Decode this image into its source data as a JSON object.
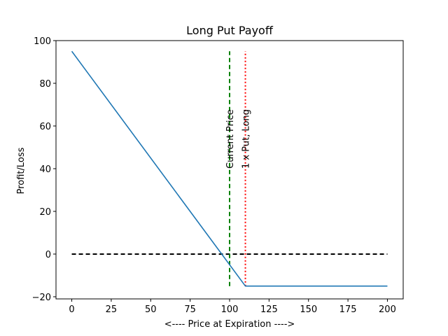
{
  "chart_data": {
    "type": "line",
    "title": "Long Put Payoff",
    "xlabel": "<---- Price at Expiration ---->",
    "ylabel": "Profit/Loss",
    "xlim": [
      -10,
      210
    ],
    "ylim": [
      -21,
      100
    ],
    "xticks": [
      0,
      25,
      50,
      75,
      100,
      125,
      150,
      175,
      200
    ],
    "yticks": [
      -20,
      0,
      20,
      40,
      60,
      80,
      100
    ],
    "grid": false,
    "legend": "none",
    "series": [
      {
        "style": "solid",
        "color": "#1f77b4",
        "x": [
          0,
          110,
          200
        ],
        "y": [
          95,
          -15,
          -15
        ]
      }
    ],
    "reference_lines": [
      {
        "orientation": "horizontal",
        "value": 0,
        "from": 0,
        "to": 200,
        "style": "dashed",
        "color": "#000000"
      },
      {
        "orientation": "vertical",
        "value": 100,
        "from": -15,
        "to": 95,
        "style": "dashed",
        "color": "#008000",
        "label": "Current Price"
      },
      {
        "orientation": "vertical",
        "value": 110,
        "from": -15,
        "to": 95,
        "style": "dotted",
        "color": "#ff0000",
        "label": "1 x Put, Long"
      }
    ],
    "annotations": [
      {
        "text": "Current Price",
        "x": 100,
        "y": 40,
        "rotation": 90
      },
      {
        "text": "1 x Put, Long",
        "x": 110,
        "y": 40,
        "rotation": 90
      }
    ]
  }
}
